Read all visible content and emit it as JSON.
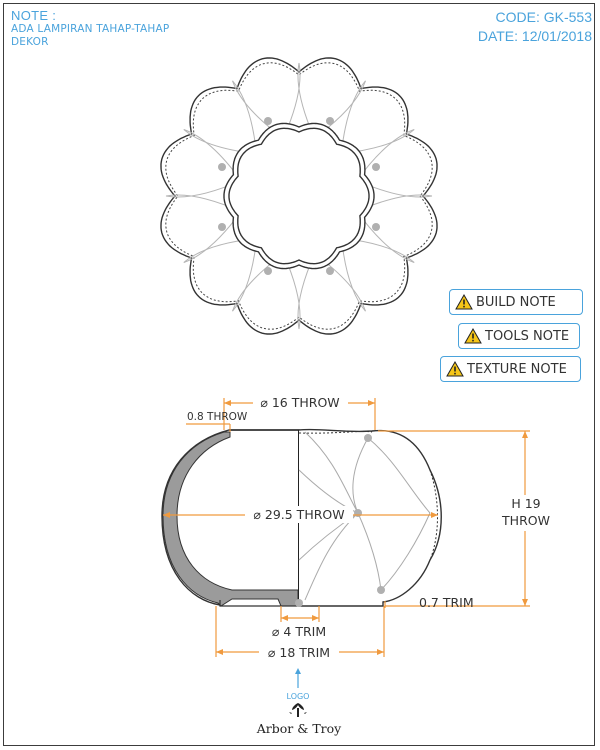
{
  "note": {
    "title": "NOTE :",
    "lines": [
      "ADA LAMPIRAN TAHAP-TAHAP",
      "DEKOR"
    ]
  },
  "meta": {
    "code": "CODE: GK-553",
    "date": "DATE: 12/01/2018"
  },
  "notes_buttons": {
    "build": "BUILD NOTE",
    "tools": "TOOLS NOTE",
    "texture": "TEXTURE NOTE"
  },
  "dimensions": {
    "top_width": "⌀ 16 THROW",
    "lip": "0.8 THROW",
    "body_diameter": "⌀ 29.5 THROW",
    "height_h": "H 19",
    "height_unit": "THROW",
    "foot_trim": "0.7 TRIM",
    "inner_base": "⌀ 4 TRIM",
    "base_diameter": "⌀ 18 TRIM"
  },
  "logo": {
    "label": "LOGO",
    "brand": "Arbor & Troy"
  },
  "colors": {
    "accent": "#4aa3dc",
    "dimension": "#f09a3e",
    "section_fill": "#9b9b9b",
    "outline": "#333333",
    "warning": "#f5c518"
  },
  "icons": [
    "warning-icon",
    "arrow-up-icon",
    "tree-logo-icon"
  ]
}
